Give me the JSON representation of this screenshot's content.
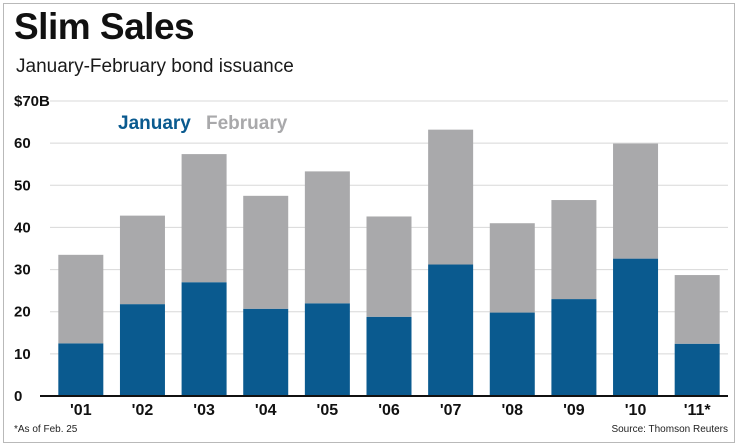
{
  "chart_data": {
    "type": "bar",
    "stacked": true,
    "title": "Slim Sales",
    "subtitle": "January-February bond issuance",
    "categories": [
      "'01",
      "'02",
      "'03",
      "'04",
      "'05",
      "'06",
      "'07",
      "'08",
      "'09",
      "'10",
      "'11*"
    ],
    "series": [
      {
        "name": "January",
        "color": "#0a5a8f",
        "values": [
          12.5,
          21.8,
          27,
          20.7,
          22,
          18.8,
          31.2,
          19.8,
          23,
          32.6,
          12.4
        ]
      },
      {
        "name": "February",
        "color": "#a9a9ab",
        "values": [
          21,
          21,
          30.4,
          26.8,
          31.3,
          23.8,
          32,
          21.2,
          23.5,
          27.3,
          16.3
        ]
      }
    ],
    "ylim": [
      0,
      70
    ],
    "yticks": [
      0,
      10,
      20,
      30,
      40,
      50,
      60
    ],
    "ytick_labels": [
      "0",
      "10",
      "20",
      "30",
      "40",
      "50",
      "60"
    ],
    "ytop_label": "$70B",
    "grid": true,
    "legend_position": "top-left",
    "footnote": "*As of Feb. 25",
    "source": "Source: Thomson Reuters"
  }
}
